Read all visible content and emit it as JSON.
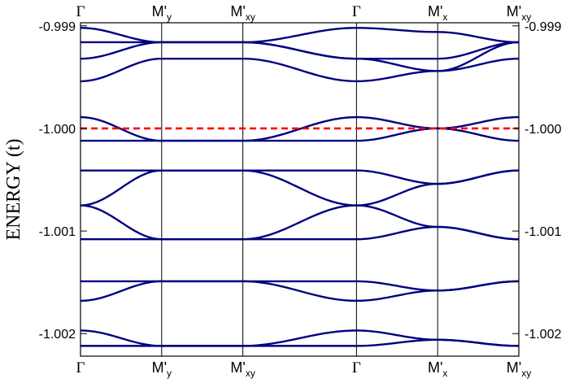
{
  "chart_data": {
    "type": "line",
    "title": "",
    "xlabel": "",
    "ylabel": "ENERGY (t)",
    "ylim": [
      -1.00222,
      -0.99897
    ],
    "grid": false,
    "legend": "none",
    "xlim": [
      0,
      5
    ],
    "x_ticks": [
      {
        "x": 0,
        "base": "Γ",
        "sub": ""
      },
      {
        "x": 1,
        "base": "M'",
        "sub": "y"
      },
      {
        "x": 2,
        "base": "M'",
        "sub": "xy"
      },
      {
        "x": 3.4,
        "base": "Γ",
        "sub": ""
      },
      {
        "x": 4.4,
        "base": "M'",
        "sub": "x"
      },
      {
        "x": 5.4,
        "base": "M'",
        "sub": "xy"
      }
    ],
    "y_ticks": [
      {
        "value": -0.999,
        "label": "-0.999"
      },
      {
        "value": -1.0,
        "label": "-1.000"
      },
      {
        "value": -1.001,
        "label": "-1.001"
      },
      {
        "value": -1.002,
        "label": "-1.002"
      }
    ],
    "fermi_level": {
      "value": -1.0,
      "color": "#ff0000",
      "style": "dashed"
    },
    "band_color": "#000080",
    "k_points": [
      0,
      1,
      2,
      3.4,
      4.4,
      5.4
    ],
    "series": [
      {
        "values": [
          -0.99902,
          -0.99916,
          -0.99916,
          -0.99902,
          -0.99906,
          -0.99916
        ]
      },
      {
        "values": [
          -0.99916,
          -0.99916,
          -0.99916,
          -0.99932,
          -0.99932,
          -0.99916
        ]
      },
      {
        "values": [
          -0.99932,
          -0.99916,
          -0.99916,
          -0.99932,
          -0.99944,
          -0.99916
        ]
      },
      {
        "values": [
          -0.99954,
          -0.99932,
          -0.99932,
          -0.99954,
          -0.99944,
          -0.99932
        ]
      },
      {
        "values": [
          -0.99989,
          -1.00012,
          -1.00012,
          -0.99989,
          -1.0,
          -1.00012
        ]
      },
      {
        "values": [
          -1.00012,
          -1.00012,
          -1.00012,
          -1.00012,
          -1.0,
          -0.99989
        ]
      },
      {
        "values": [
          -1.00041,
          -1.00041,
          -1.00041,
          -1.00041,
          -1.00054,
          -1.00041
        ]
      },
      {
        "values": [
          -1.00075,
          -1.00041,
          -1.00041,
          -1.00075,
          -1.00054,
          -1.00041
        ]
      },
      {
        "values": [
          -1.00075,
          -1.00108,
          -1.00108,
          -1.00075,
          -1.00096,
          -1.00108
        ]
      },
      {
        "values": [
          -1.00108,
          -1.00108,
          -1.00108,
          -1.00108,
          -1.00096,
          -1.00108
        ]
      },
      {
        "values": [
          -1.00149,
          -1.00149,
          -1.00149,
          -1.00149,
          -1.00158,
          -1.00149
        ]
      },
      {
        "values": [
          -1.00168,
          -1.00149,
          -1.00149,
          -1.00168,
          -1.00158,
          -1.00149
        ]
      },
      {
        "values": [
          -1.00197,
          -1.00212,
          -1.00212,
          -1.00197,
          -1.00206,
          -1.00212
        ]
      },
      {
        "values": [
          -1.00212,
          -1.00212,
          -1.00212,
          -1.00212,
          -1.00206,
          -1.00212
        ]
      }
    ]
  }
}
